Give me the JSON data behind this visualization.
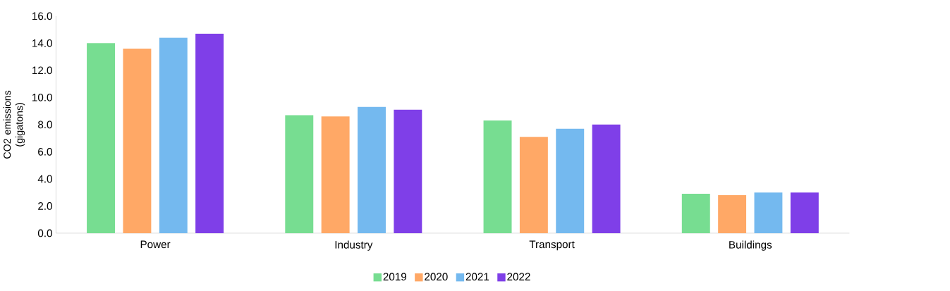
{
  "chart_data": {
    "type": "bar",
    "ylabel": "CO2 emissions (gigatons)",
    "categories": [
      "Power",
      "Industry",
      "Transport",
      "Buildings"
    ],
    "series": [
      {
        "name": "2019",
        "color": "#77dd91",
        "values": [
          14.0,
          8.7,
          8.3,
          2.9
        ]
      },
      {
        "name": "2020",
        "color": "#ffa866",
        "values": [
          13.6,
          8.6,
          7.1,
          2.8
        ]
      },
      {
        "name": "2021",
        "color": "#74b9ef",
        "values": [
          14.4,
          9.3,
          7.7,
          3.0
        ]
      },
      {
        "name": "2022",
        "color": "#7f3fe8",
        "values": [
          14.7,
          9.1,
          8.0,
          3.0
        ]
      }
    ],
    "ylim": [
      0,
      16
    ],
    "yticks": [
      {
        "value": 0,
        "label": "0.0"
      },
      {
        "value": 2,
        "label": "2.0"
      },
      {
        "value": 4,
        "label": "4.0"
      },
      {
        "value": 6,
        "label": "6.0"
      },
      {
        "value": 8,
        "label": "8.0"
      },
      {
        "value": 10,
        "label": "10.0"
      },
      {
        "value": 12,
        "label": "12.0"
      },
      {
        "value": 14,
        "label": "14.0"
      },
      {
        "value": 16,
        "label": "16.0"
      }
    ],
    "grid": false,
    "legend": "bottom"
  }
}
